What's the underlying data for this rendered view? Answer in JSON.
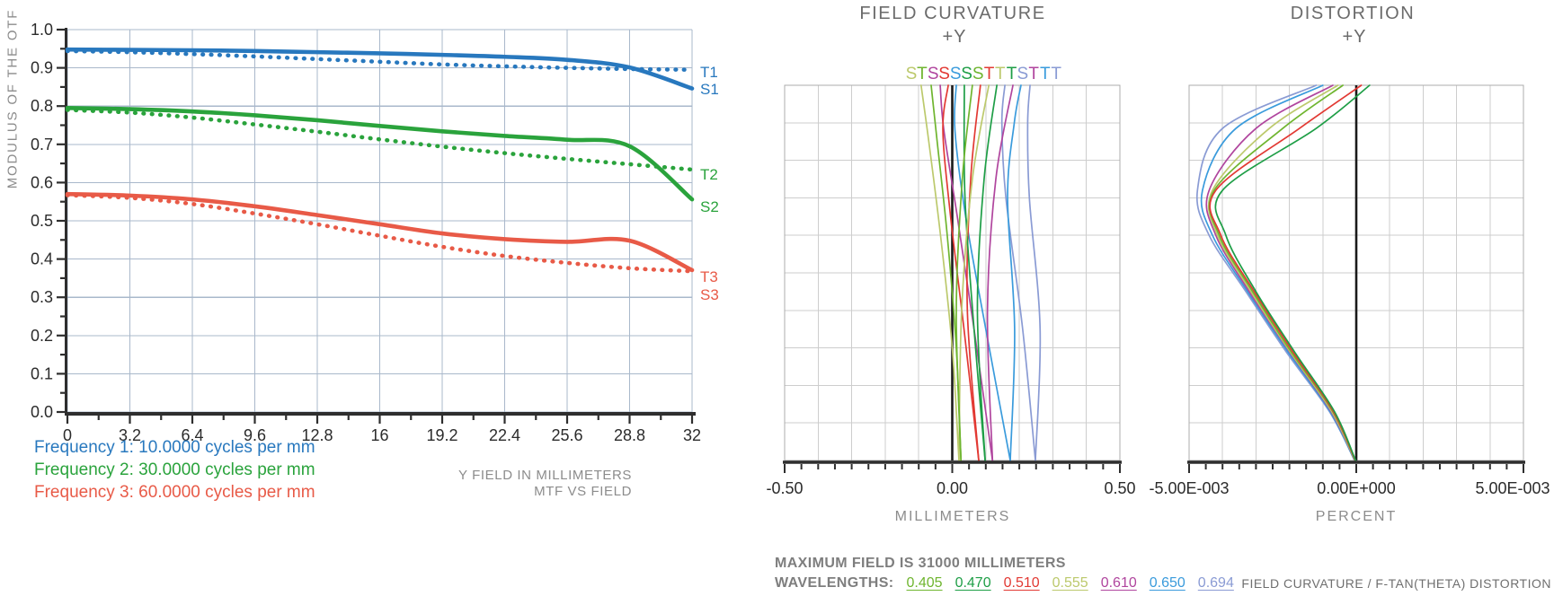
{
  "palette": {
    "blue": "#2878BE",
    "green": "#2AA33C",
    "red": "#E85A47",
    "0.405": "#6FB52F",
    "0.470": "#1E9E46",
    "0.510": "#E23933",
    "0.555": "#BCC96C",
    "0.610": "#B0459E",
    "0.650": "#3A9BDC",
    "0.694": "#8A9BD4",
    "grid_mtf": "#A9B8CB",
    "grid_gray": "#CDCDCD",
    "frame_gray": "#ACACAC",
    "spine": "#2E2E2E",
    "axis_black": "#1A1A1A",
    "tick_text": "#333333"
  },
  "chart_data": [
    {
      "type": "line",
      "title": "MTF VS FIELD",
      "note": "MTF VS FIELD",
      "xlabel": "Y FIELD IN MILLIMETERS",
      "ylabel": "MODULUS OF THE OTF",
      "xlim": [
        0,
        32
      ],
      "ylim": [
        0.0,
        1.0
      ],
      "x_values": [
        0,
        3.2,
        6.4,
        9.6,
        12.8,
        16,
        19.2,
        22.4,
        25.6,
        28.8,
        32
      ],
      "x_tick_labels": [
        "0",
        "3.2",
        "6.4",
        "9.6",
        "12.8",
        "16",
        "19.2",
        "22.4",
        "25.6",
        "28.8",
        "32"
      ],
      "y_tick_labels": [
        "0.0",
        "0.1",
        "0.2",
        "0.3",
        "0.4",
        "0.5",
        "0.6",
        "0.7",
        "0.8",
        "0.9",
        "1.0"
      ],
      "series": [
        {
          "name": "T1",
          "line": "dashed",
          "color": "blue",
          "values": [
            0.944,
            0.941,
            0.936,
            0.93,
            0.923,
            0.916,
            0.909,
            0.904,
            0.9,
            0.897,
            0.895
          ]
        },
        {
          "name": "S1",
          "line": "solid",
          "color": "blue",
          "values": [
            0.948,
            0.947,
            0.946,
            0.944,
            0.941,
            0.938,
            0.934,
            0.929,
            0.921,
            0.901,
            0.846
          ]
        },
        {
          "name": "T2",
          "line": "dashed",
          "color": "green",
          "values": [
            0.79,
            0.783,
            0.77,
            0.752,
            0.733,
            0.713,
            0.694,
            0.677,
            0.662,
            0.648,
            0.634
          ]
        },
        {
          "name": "S2",
          "line": "solid",
          "color": "green",
          "values": [
            0.795,
            0.792,
            0.786,
            0.776,
            0.763,
            0.748,
            0.734,
            0.722,
            0.712,
            0.695,
            0.556
          ]
        },
        {
          "name": "T3",
          "line": "dashed",
          "color": "red",
          "values": [
            0.567,
            0.56,
            0.544,
            0.519,
            0.491,
            0.461,
            0.432,
            0.408,
            0.39,
            0.376,
            0.368
          ]
        },
        {
          "name": "S3",
          "line": "solid",
          "color": "red",
          "values": [
            0.57,
            0.566,
            0.556,
            0.538,
            0.515,
            0.491,
            0.467,
            0.452,
            0.445,
            0.448,
            0.371
          ]
        }
      ],
      "curve_labels": [
        {
          "text": "T1",
          "color": "blue",
          "value": 0.89
        },
        {
          "text": "S1",
          "color": "blue",
          "value": 0.845
        },
        {
          "text": "T2",
          "color": "green",
          "value": 0.622
        },
        {
          "text": "S2",
          "color": "green",
          "value": 0.538
        },
        {
          "text": "T3",
          "color": "red",
          "value": 0.354
        },
        {
          "text": "S3",
          "color": "red",
          "value": 0.307
        }
      ],
      "legend": [
        {
          "label": "Frequency 1: 10.0000 cycles per mm",
          "color": "blue"
        },
        {
          "label": "Frequency 2: 30.0000 cycles per mm",
          "color": "green"
        },
        {
          "label": "Frequency 3: 60.0000 cycles per mm",
          "color": "red"
        }
      ]
    },
    {
      "type": "line",
      "title": "FIELD CURVATURE",
      "subtitle": "+Y",
      "xlabel": "MILLIMETERS",
      "x_range": [
        -0.5,
        0.5
      ],
      "x_tick_positions": [
        -0.5,
        0,
        0.5
      ],
      "x_tick_labels": [
        "-0.50",
        "0.00",
        "0.50"
      ],
      "top_letters": [
        {
          "t": "S",
          "w": "0.555",
          "x": -0.122
        },
        {
          "t": "T",
          "w": "0.405",
          "x": -0.09
        },
        {
          "t": "S",
          "w": "0.610",
          "x": -0.057
        },
        {
          "t": "S",
          "w": "0.510",
          "x": -0.024
        },
        {
          "t": "S",
          "w": "0.650",
          "x": 0.01
        },
        {
          "t": "S",
          "w": "0.470",
          "x": 0.043
        },
        {
          "t": "S",
          "w": "0.405",
          "x": 0.077
        },
        {
          "t": "T",
          "w": "0.510",
          "x": 0.11
        },
        {
          "t": "T",
          "w": "0.555",
          "x": 0.143
        },
        {
          "t": "T",
          "w": "0.470",
          "x": 0.177
        },
        {
          "t": "S",
          "w": "0.694",
          "x": 0.21
        },
        {
          "t": "T",
          "w": "0.610",
          "x": 0.243
        },
        {
          "t": "T",
          "w": "0.650",
          "x": 0.277
        },
        {
          "t": "T",
          "w": "0.694",
          "x": 0.31
        }
      ],
      "curves": [
        {
          "wavelength": "0.694",
          "ray": "T",
          "points": [
            [
              0,
              0.248
            ],
            [
              0.35,
              0.262
            ],
            [
              0.7,
              0.23
            ],
            [
              0.9,
              0.225
            ],
            [
              1,
              0.232
            ]
          ]
        },
        {
          "wavelength": "0.694",
          "ray": "S",
          "points": [
            [
              0,
              0.248
            ],
            [
              0.35,
              0.21
            ],
            [
              0.7,
              0.16
            ],
            [
              0.9,
              0.148
            ],
            [
              1,
              0.157
            ]
          ]
        },
        {
          "wavelength": "0.650",
          "ray": "T",
          "points": [
            [
              0,
              0.173
            ],
            [
              0.35,
              0.186
            ],
            [
              0.7,
              0.165
            ],
            [
              0.9,
              0.185
            ],
            [
              1,
              0.205
            ]
          ]
        },
        {
          "wavelength": "0.650",
          "ray": "S",
          "points": [
            [
              0,
              0.173
            ],
            [
              0.35,
              0.1
            ],
            [
              0.65,
              0.04
            ],
            [
              0.88,
              0.008
            ],
            [
              1,
              0.012
            ]
          ]
        },
        {
          "wavelength": "0.610",
          "ray": "T",
          "points": [
            [
              0,
              0.12
            ],
            [
              0.4,
              0.105
            ],
            [
              0.75,
              0.13
            ],
            [
              1,
              0.181
            ]
          ]
        },
        {
          "wavelength": "0.610",
          "ray": "S",
          "points": [
            [
              0,
              0.12
            ],
            [
              0.35,
              0.065
            ],
            [
              0.65,
              0.015
            ],
            [
              0.88,
              -0.025
            ],
            [
              1,
              -0.036
            ]
          ]
        },
        {
          "wavelength": "0.510",
          "ray": "T",
          "points": [
            [
              0,
              0.079
            ],
            [
              0.4,
              0.045
            ],
            [
              0.75,
              0.055
            ],
            [
              1,
              0.084
            ]
          ]
        },
        {
          "wavelength": "0.510",
          "ray": "S",
          "points": [
            [
              0,
              0.079
            ],
            [
              0.35,
              0.035
            ],
            [
              0.65,
              -0.005
            ],
            [
              0.88,
              -0.028
            ],
            [
              1,
              -0.012
            ]
          ]
        },
        {
          "wavelength": "0.470",
          "ray": "T",
          "points": [
            [
              0,
              0.098
            ],
            [
              0.4,
              0.075
            ],
            [
              0.75,
              0.095
            ],
            [
              1,
              0.133
            ]
          ]
        },
        {
          "wavelength": "0.470",
          "ray": "S",
          "points": [
            [
              0,
              0.098
            ],
            [
              0.35,
              0.065
            ],
            [
              0.7,
              0.038
            ],
            [
              1,
              0.036
            ]
          ]
        },
        {
          "wavelength": "0.555",
          "ray": "T",
          "points": [
            [
              0,
              0.02
            ],
            [
              0.4,
              0.028
            ],
            [
              0.75,
              0.06
            ],
            [
              1,
              0.109
            ]
          ]
        },
        {
          "wavelength": "0.555",
          "ray": "S",
          "points": [
            [
              0,
              0.02
            ],
            [
              0.3,
              0.0
            ],
            [
              0.6,
              -0.035
            ],
            [
              0.85,
              -0.07
            ],
            [
              1,
              -0.093
            ]
          ]
        },
        {
          "wavelength": "0.405",
          "ray": "T",
          "points": [
            [
              0,
              0.026
            ],
            [
              0.3,
              0.012
            ],
            [
              0.6,
              -0.015
            ],
            [
              0.85,
              -0.045
            ],
            [
              1,
              -0.063
            ]
          ]
        },
        {
          "wavelength": "0.405",
          "ray": "S",
          "points": [
            [
              0,
              0.026
            ],
            [
              0.4,
              0.012
            ],
            [
              0.75,
              0.03
            ],
            [
              1,
              0.06
            ]
          ]
        }
      ]
    },
    {
      "type": "line",
      "title": "DISTORTION",
      "subtitle": "+Y",
      "xlabel": "PERCENT",
      "x_range": [
        -0.005,
        0.005
      ],
      "x_tick_positions": [
        -0.005,
        0,
        0.005
      ],
      "x_tick_labels": [
        "-5.00E-003",
        "0.00E+000",
        "5.00E-003"
      ],
      "curves": [
        {
          "wavelength": "0.694",
          "points": [
            [
              0,
              -5e-05
            ],
            [
              0.13,
              -0.0008
            ],
            [
              0.29,
              -0.0021
            ],
            [
              0.45,
              -0.0033
            ],
            [
              0.6,
              -0.0044
            ],
            [
              0.72,
              -0.00475
            ],
            [
              0.885,
              -0.004
            ],
            [
              1,
              -0.0012
            ]
          ]
        },
        {
          "wavelength": "0.650",
          "points": [
            [
              0,
              -5e-05
            ],
            [
              0.13,
              -0.00078
            ],
            [
              0.29,
              -0.00205
            ],
            [
              0.45,
              -0.00325
            ],
            [
              0.6,
              -0.0043
            ],
            [
              0.72,
              -0.0046
            ],
            [
              0.885,
              -0.0036
            ],
            [
              1,
              -0.001
            ]
          ]
        },
        {
          "wavelength": "0.610",
          "points": [
            [
              0,
              -4e-05
            ],
            [
              0.13,
              -0.00075
            ],
            [
              0.29,
              -0.002
            ],
            [
              0.45,
              -0.0032
            ],
            [
              0.6,
              -0.0042
            ],
            [
              0.72,
              -0.0044
            ],
            [
              0.885,
              -0.003
            ],
            [
              1,
              -0.0007
            ]
          ]
        },
        {
          "wavelength": "0.555",
          "points": [
            [
              0,
              -4e-05
            ],
            [
              0.13,
              -0.00073
            ],
            [
              0.29,
              -0.00198
            ],
            [
              0.45,
              -0.00315
            ],
            [
              0.6,
              -0.00415
            ],
            [
              0.72,
              -0.0043
            ],
            [
              0.885,
              -0.0026
            ],
            [
              1,
              -0.00055
            ]
          ]
        },
        {
          "wavelength": "0.405",
          "points": [
            [
              0,
              -3e-05
            ],
            [
              0.13,
              -0.0007
            ],
            [
              0.29,
              -0.00195
            ],
            [
              0.45,
              -0.0031
            ],
            [
              0.6,
              -0.0041
            ],
            [
              0.72,
              -0.00425
            ],
            [
              0.885,
              -0.0022
            ],
            [
              1,
              -0.0004
            ]
          ]
        },
        {
          "wavelength": "0.510",
          "points": [
            [
              0,
              -3e-05
            ],
            [
              0.13,
              -0.00068
            ],
            [
              0.29,
              -0.0019
            ],
            [
              0.45,
              -0.00305
            ],
            [
              0.6,
              -0.00405
            ],
            [
              0.72,
              -0.0042
            ],
            [
              0.885,
              -0.0017
            ],
            [
              1,
              0.00015
            ]
          ]
        },
        {
          "wavelength": "0.470",
          "points": [
            [
              0,
              -2e-05
            ],
            [
              0.13,
              -0.00065
            ],
            [
              0.29,
              -0.00185
            ],
            [
              0.45,
              -0.003
            ],
            [
              0.6,
              -0.0039
            ],
            [
              0.72,
              -0.004
            ],
            [
              0.885,
              -0.0012
            ],
            [
              1,
              0.0004
            ]
          ]
        }
      ]
    }
  ],
  "footer": {
    "max_field": "MAXIMUM FIELD IS 31000 MILLIMETERS",
    "wavelengths_label": "WAVELENGTHS:",
    "wavelengths": [
      {
        "value": "0.405"
      },
      {
        "value": "0.470"
      },
      {
        "value": "0.510"
      },
      {
        "value": "0.555"
      },
      {
        "value": "0.610"
      },
      {
        "value": "0.650"
      },
      {
        "value": "0.694"
      }
    ],
    "right_note": "FIELD CURVATURE / F-TAN(THETA)  DISTORTION"
  }
}
